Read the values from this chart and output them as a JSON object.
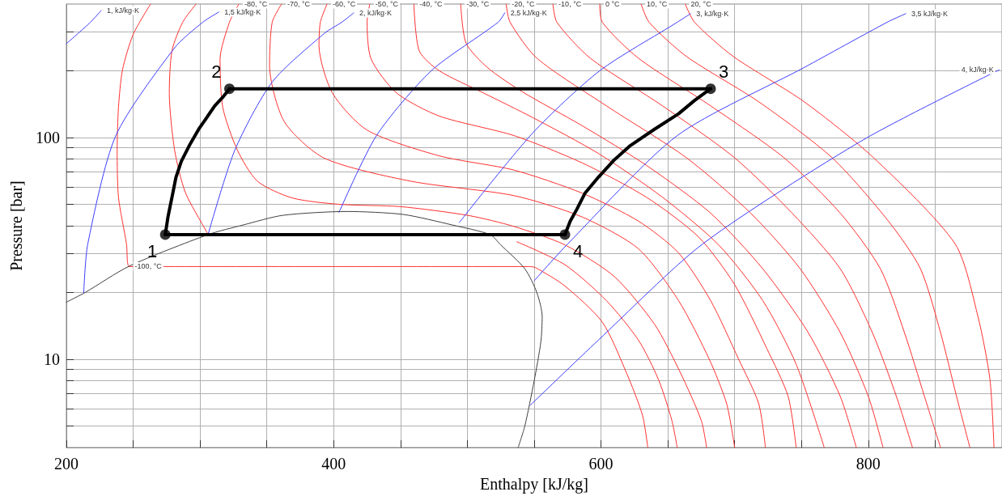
{
  "chart_data": {
    "type": "line",
    "xlabel": "Enthalpy [kJ/kg]",
    "ylabel": "Pressure [bar]",
    "log": "y",
    "grid": true,
    "legend": false,
    "marker": "none",
    "xlim": [
      200,
      900
    ],
    "xticks": [
      200,
      {
        "value": 250,
        "label": null
      },
      {
        "value": 300,
        "label": null
      },
      {
        "value": 350,
        "label": null
      },
      400,
      {
        "value": 450,
        "label": null
      },
      {
        "value": 500,
        "label": null
      },
      {
        "value": 550,
        "label": null
      },
      600,
      {
        "value": 650,
        "label": null
      },
      {
        "value": 700,
        "label": null
      },
      {
        "value": 750,
        "label": null
      },
      800,
      {
        "value": 850,
        "label": null
      }
    ],
    "ylim": [
      4,
      400
    ],
    "yticks": [
      {
        "value": 5,
        "label": null
      },
      {
        "value": 6,
        "label": null
      },
      {
        "value": 7,
        "label": null
      },
      {
        "value": 8,
        "label": null
      },
      {
        "value": 9,
        "label": null
      },
      10,
      {
        "value": 20,
        "label": null
      },
      {
        "value": 30,
        "label": null
      },
      {
        "value": 40,
        "label": null
      },
      {
        "value": 50,
        "label": null
      },
      {
        "value": 60,
        "label": null
      },
      {
        "value": 70,
        "label": null
      },
      {
        "value": 80,
        "label": null
      },
      {
        "value": 90,
        "label": null
      },
      100,
      {
        "value": 200,
        "label": null
      },
      {
        "value": 300,
        "label": null
      }
    ],
    "series": [
      {
        "name": "-100, °C",
        "color": "#ff3030",
        "x": [
          263,
          250,
          242,
          239,
          238,
          239,
          245,
          247,
          546,
          551,
          573,
          601,
          619,
          631,
          635
        ],
        "values": [
          400,
          292,
          202,
          137,
          88,
          53.8,
          33.1,
          26.2,
          26.2,
          25.9,
          21.4,
          14.7,
          8.7,
          5.6,
          4
        ]
      },
      {
        "color": "#ff3030",
        "x": [
          297,
          287,
          279,
          277,
          281,
          289,
          305,
          306,
          517,
          537,
          573,
          604,
          628,
          643,
          653,
          657
        ],
        "values": [
          400,
          331,
          246,
          159,
          87.6,
          56.6,
          37.5,
          36.5,
          null,
          33.9,
          26.7,
          18.4,
          12.2,
          8.1,
          5.3,
          4
        ]
      },
      {
        "name": "-80, °C",
        "color": "#ff3030",
        "x": [
          329,
          322,
          315,
          317,
          328,
          343,
          369,
          404,
          450,
          501,
          535,
          573,
          610,
          640,
          659,
          675,
          679
        ],
        "values": [
          400,
          331,
          226,
          137,
          87.6,
          63.5,
          53.4,
          50,
          48.8,
          44.5,
          39.7,
          32.8,
          23.6,
          14.4,
          8.8,
          5.3,
          4
        ]
      },
      {
        "name": "-70, °C",
        "color": "#ff3030",
        "x": [
          361,
          354,
          352,
          363,
          393,
          458,
          535,
          586,
          628,
          658,
          681,
          694,
          700
        ],
        "values": [
          400,
          331,
          212,
          118,
          80.7,
          63.5,
          54.7,
          43.8,
          31.5,
          18.4,
          10,
          6.3,
          4
        ]
      },
      {
        "name": "-60, °C",
        "color": "#ff3030",
        "x": [
          395,
          390,
          389,
          399,
          425,
          479,
          535,
          586,
          628,
          658,
          682,
          703,
          718,
          723
        ],
        "values": [
          400,
          331,
          260,
          159,
          108,
          82.7,
          71.3,
          56.1,
          42,
          30.2,
          18.4,
          10,
          6.3,
          4
        ]
      },
      {
        "name": "-50, °C",
        "color": "#ff3030",
        "x": [
          427,
          425,
          428,
          447,
          479,
          535,
          586,
          634,
          673,
          700,
          724,
          740,
          746
        ],
        "values": [
          400,
          331,
          226,
          159,
          125,
          102,
          76.8,
          53.8,
          35.6,
          21.7,
          11.2,
          6.8,
          4
        ]
      },
      {
        "name": "-40, °C",
        "color": "#ff3030",
        "x": [
          460,
          464,
          479,
          512,
          549,
          598,
          646,
          688,
          721,
          746,
          767
        ],
        "values": [
          400,
          246,
          200,
          159,
          123,
          84.8,
          53.8,
          32.8,
          18.4,
          9.5,
          4
        ]
      },
      {
        "name": "-30, °C",
        "color": "#ff3030",
        "x": [
          495,
          499,
          515,
          541,
          586,
          634,
          682,
          721,
          755,
          779,
          791
        ],
        "values": [
          400,
          267,
          207,
          161,
          113,
          74.9,
          45.6,
          25.6,
          13.2,
          6.8,
          4
        ]
      },
      {
        "name": "-20, °C",
        "color": "#ff3030",
        "x": [
          529,
          532,
          552,
          604,
          664,
          712,
          749,
          779,
          800,
          811
        ],
        "values": [
          400,
          331,
          228,
          139,
          81,
          45.6,
          25.6,
          13.2,
          6.8,
          4
        ]
      },
      {
        "name": "-10, °C",
        "color": "#ff3030",
        "x": [
          564,
          567,
          592,
          646,
          700,
          743,
          779,
          803,
          821,
          833
        ],
        "values": [
          400,
          331,
          228,
          139,
          81,
          45.6,
          25.6,
          13.2,
          6.8,
          4
        ]
      },
      {
        "name": "0 °C",
        "color": "#ff3030",
        "x": [
          599,
          601,
          628,
          682,
          737,
          779,
          809,
          827,
          842,
          854
        ],
        "values": [
          400,
          331,
          228,
          139,
          81,
          45.6,
          25.6,
          13.2,
          6.8,
          4
        ]
      },
      {
        "name": "10, °C",
        "color": "#ff3030",
        "x": [
          630,
          636,
          664,
          718,
          773,
          815,
          839,
          854,
          866,
          876
        ],
        "values": [
          400,
          331,
          232,
          145,
          81,
          42,
          25.6,
          13.2,
          6.8,
          4
        ]
      },
      {
        "name": "20, °C",
        "color": "#ff3030",
        "x": [
          663,
          670,
          699,
          752,
          804,
          865,
          882,
          891,
          894
        ],
        "values": [
          400,
          331,
          232,
          145,
          81,
          33.1,
          15.6,
          8.1,
          4
        ]
      },
      {
        "name": "1, kJ/kg·K",
        "color": "#3c3cff",
        "x": [
          200,
          218,
          226
        ],
        "values": [
          265,
          331,
          374
        ]
      },
      {
        "name": "1,5 kJ/kg·K",
        "color": "#3c3cff",
        "x": [
          213,
          216,
          237,
          281,
          302,
          314
        ],
        "values": [
          20,
          33.1,
          102,
          254,
          331,
          368
        ]
      },
      {
        "name": "2, kJ/kg·K",
        "color": "#3c3cff",
        "x": [
          306,
          326,
          354,
          393,
          406,
          415
        ],
        "values": [
          36.5,
          87.6,
          178,
          295,
          331,
          365
        ]
      },
      {
        "name": "2,5 kJ/kg·K",
        "color": "#3c3cff",
        "x": [
          404,
          432,
          473,
          523,
          528
        ],
        "values": [
          46,
          102,
          200,
          331,
          365
        ]
      },
      {
        "name": "3, kJ/kg·K",
        "color": "#3c3cff",
        "x": [
          494,
          549,
          599,
          657,
          667
        ],
        "values": [
          41.4,
          105,
          200,
          331,
          362
        ]
      },
      {
        "name": "3,5 kJ/kg·K",
        "color": "#3c3cff",
        "x": [
          550,
          575,
          657,
          752,
          814,
          828
        ],
        "values": [
          22.6,
          33.1,
          102,
          207,
          331,
          362
        ]
      },
      {
        "name": "4, kJ/kg·K",
        "color": "#3c3cff",
        "x": [
          547,
          598,
          676,
          796,
          898
        ],
        "values": [
          6.2,
          12.2,
          33.1,
          97.5,
          202
        ]
      },
      {
        "color": "#404040",
        "x": [
          200,
          214,
          247,
          306,
          332,
          362,
          410,
          452,
          489,
          517,
          525,
          543,
          552,
          556,
          555,
          550,
          543,
          538
        ],
        "values": [
          18.1,
          20,
          26.3,
          36.5,
          40.3,
          44.6,
          46.4,
          45,
          40.3,
          36.5,
          32.8,
          25.6,
          20,
          15.6,
          12,
          8,
          5,
          4
        ]
      },
      {
        "color": "#000000",
        "x": [
          274,
          276,
          279,
          282,
          286,
          292,
          299,
          305,
          311,
          317,
          322
        ],
        "values": [
          36.5,
          43.8,
          53.8,
          66.2,
          78.1,
          92.1,
          109,
          123,
          139,
          152,
          166
        ]
      },
      {
        "color": "#000000",
        "x": [
          322,
          682
        ],
        "values": [
          166,
          166
        ]
      },
      {
        "color": "#000000",
        "x": [
          573,
          577,
          582,
          588,
          598,
          610,
          622,
          640,
          658,
          670,
          682
        ],
        "values": [
          36.5,
          42,
          47.6,
          56.1,
          66.2,
          79.4,
          92.1,
          109,
          128,
          147,
          166
        ]
      },
      {
        "color": "#000000",
        "x": [
          274,
          573
        ],
        "values": [
          36.5,
          36.5
        ]
      },
      {
        "type": "scatter",
        "marker": "circle",
        "color": "#000000",
        "x": [
          274,
          322,
          682,
          573
        ],
        "values": [
          36.5,
          166,
          166,
          36.5
        ]
      }
    ],
    "annotations": [
      {
        "text": "1",
        "x": 274,
        "y": 36.5
      },
      {
        "text": "2",
        "x": 322,
        "y": 166
      },
      {
        "text": "3",
        "x": 682,
        "y": 166
      },
      {
        "text": "4",
        "x": 573,
        "y": 36.5
      }
    ]
  }
}
